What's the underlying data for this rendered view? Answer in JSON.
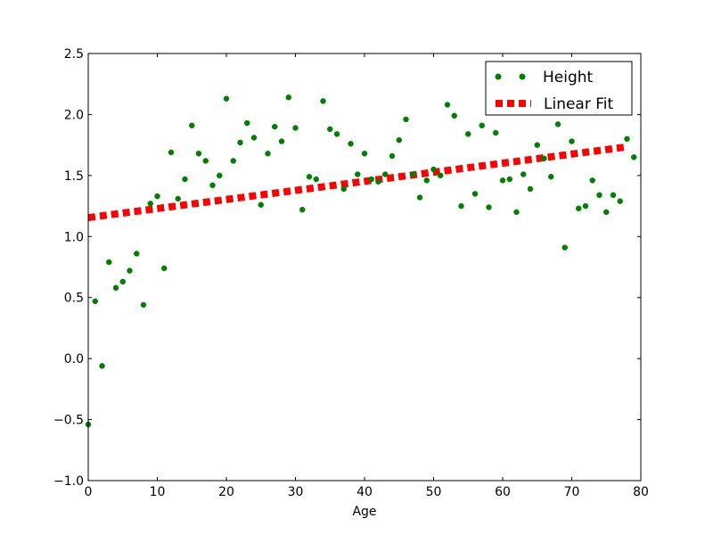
{
  "chart_data": {
    "type": "scatter",
    "title": "",
    "xlabel": "Age",
    "ylabel": "",
    "xlim": [
      0,
      80
    ],
    "ylim": [
      -1.0,
      2.5
    ],
    "xticks": [
      "0",
      "10",
      "20",
      "30",
      "40",
      "50",
      "60",
      "70",
      "80"
    ],
    "yticks": [
      "−1.0",
      "−0.5",
      "0.0",
      "0.5",
      "1.0",
      "1.5",
      "2.0",
      "2.5"
    ],
    "grid": false,
    "legend_position": "top-right",
    "series": [
      {
        "name": "Height",
        "kind": "scatter",
        "color": "#008000",
        "x": [
          0,
          1,
          2,
          3,
          4,
          5,
          6,
          7,
          8,
          9,
          10,
          11,
          12,
          13,
          14,
          15,
          16,
          17,
          18,
          19,
          20,
          21,
          22,
          23,
          24,
          25,
          26,
          27,
          28,
          29,
          30,
          31,
          32,
          33,
          34,
          35,
          36,
          37,
          38,
          39,
          40,
          41,
          42,
          43,
          44,
          45,
          46,
          47,
          48,
          49,
          50,
          51,
          52,
          53,
          54,
          55,
          56,
          57,
          58,
          59,
          60,
          61,
          62,
          63,
          64,
          65,
          66,
          67,
          68,
          69,
          70,
          71,
          72,
          73,
          74,
          75,
          76,
          77,
          78,
          79
        ],
        "y": [
          -0.54,
          0.47,
          -0.06,
          0.79,
          0.58,
          0.63,
          0.72,
          0.86,
          0.44,
          1.27,
          1.33,
          0.74,
          1.69,
          1.31,
          1.47,
          1.91,
          1.68,
          1.62,
          1.42,
          1.5,
          2.13,
          1.62,
          1.77,
          1.93,
          1.81,
          1.26,
          1.68,
          1.9,
          1.78,
          2.14,
          1.89,
          1.22,
          1.49,
          1.47,
          2.11,
          1.88,
          1.84,
          1.39,
          1.76,
          1.51,
          1.68,
          1.47,
          1.45,
          1.51,
          1.66,
          1.79,
          1.96,
          1.51,
          1.32,
          1.46,
          1.55,
          1.5,
          2.08,
          1.99,
          1.25,
          1.84,
          1.35,
          1.91,
          1.24,
          1.85,
          1.46,
          1.47,
          1.2,
          1.51,
          1.39,
          1.75,
          1.64,
          1.49,
          1.92,
          0.91,
          1.78,
          1.23,
          1.25,
          1.46,
          1.34,
          1.2,
          1.34,
          1.29,
          1.8,
          1.65
        ]
      },
      {
        "name": "Linear Fit",
        "kind": "line",
        "color": "#ff0000",
        "x": [
          0,
          78
        ],
        "y": [
          1.155,
          1.735
        ]
      }
    ]
  }
}
